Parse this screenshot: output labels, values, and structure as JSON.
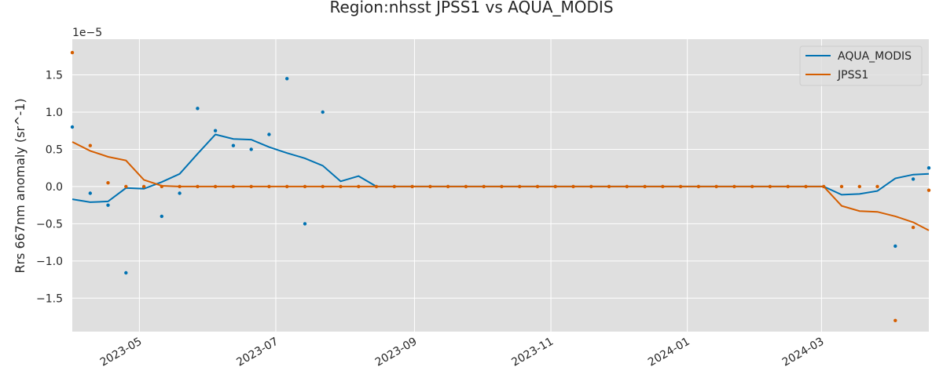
{
  "chart_data": {
    "type": "line",
    "title": "Region:nhsst JPSS1 vs AQUA_MODIS",
    "ylabel": "Rrs 667nm anomaly (sr^-1)",
    "y_offset_label": "1e−5",
    "y_scale_note": "values in units of 1e-5",
    "xlim": [
      "2023-04-01",
      "2024-04-18"
    ],
    "ylim": [
      -1.95,
      1.98
    ],
    "x_tick_labels": [
      "2023-05",
      "2023-07",
      "2023-09",
      "2023-11",
      "2024-01",
      "2024-03"
    ],
    "x_ticks": [
      "2023-05-01",
      "2023-07-01",
      "2023-09-01",
      "2023-11-01",
      "2024-01-01",
      "2024-03-01"
    ],
    "y_ticks": [
      -1.5,
      -1.0,
      -0.5,
      0.0,
      0.5,
      1.0,
      1.5
    ],
    "y_tick_labels": [
      "−1.5",
      "−1.0",
      "−0.5",
      "0.0",
      "0.5",
      "1.0",
      "1.5"
    ],
    "grid": true,
    "legend_position": "top-right",
    "colors": {
      "AQUA_MODIS": "#0072b2",
      "JPSS1": "#d55e00",
      "plot_bg": "#dfdfdf",
      "grid": "#ffffff"
    },
    "series": [
      {
        "name": "AQUA_MODIS",
        "kind": "line",
        "x": [
          "2023-04-01",
          "2023-04-09",
          "2023-04-17",
          "2023-04-25",
          "2023-05-03",
          "2023-05-11",
          "2023-05-19",
          "2023-05-27",
          "2023-06-04",
          "2023-06-12",
          "2023-06-20",
          "2023-06-28",
          "2023-07-06",
          "2023-07-14",
          "2023-07-22",
          "2023-07-30",
          "2023-08-07",
          "2023-08-15",
          "2023-08-23",
          "2023-08-31",
          "2023-09-08",
          "2023-09-16",
          "2023-09-24",
          "2023-10-02",
          "2023-10-10",
          "2023-10-18",
          "2023-10-26",
          "2023-11-03",
          "2023-11-11",
          "2023-11-19",
          "2023-11-27",
          "2023-12-05",
          "2023-12-13",
          "2023-12-21",
          "2023-12-29",
          "2024-01-06",
          "2024-01-14",
          "2024-01-22",
          "2024-01-30",
          "2024-02-07",
          "2024-02-15",
          "2024-02-23",
          "2024-03-02",
          "2024-03-10",
          "2024-03-18",
          "2024-03-26",
          "2024-04-03",
          "2024-04-11",
          "2024-04-18"
        ],
        "values": [
          -0.17,
          -0.21,
          -0.2,
          -0.02,
          -0.03,
          0.06,
          0.17,
          0.44,
          0.7,
          0.64,
          0.63,
          0.53,
          0.45,
          0.38,
          0.28,
          0.07,
          0.14,
          0.0,
          0.0,
          0.0,
          0.0,
          0.0,
          0.0,
          0.0,
          0.0,
          0.0,
          0.0,
          0.0,
          0.0,
          0.0,
          0.0,
          0.0,
          0.0,
          0.0,
          0.0,
          0.0,
          0.0,
          0.0,
          0.0,
          0.0,
          0.0,
          0.0,
          0.0,
          -0.11,
          -0.1,
          -0.06,
          0.11,
          0.16,
          0.17
        ]
      },
      {
        "name": "JPSS1",
        "kind": "line",
        "x": [
          "2023-04-01",
          "2023-04-09",
          "2023-04-17",
          "2023-04-25",
          "2023-05-03",
          "2023-05-11",
          "2023-05-19",
          "2023-05-27",
          "2023-06-04",
          "2023-06-12",
          "2023-06-20",
          "2023-06-28",
          "2023-07-06",
          "2023-07-14",
          "2023-07-22",
          "2023-07-30",
          "2023-08-07",
          "2023-08-15",
          "2023-08-23",
          "2023-08-31",
          "2023-09-08",
          "2023-09-16",
          "2023-09-24",
          "2023-10-02",
          "2023-10-10",
          "2023-10-18",
          "2023-10-26",
          "2023-11-03",
          "2023-11-11",
          "2023-11-19",
          "2023-11-27",
          "2023-12-05",
          "2023-12-13",
          "2023-12-21",
          "2023-12-29",
          "2024-01-06",
          "2024-01-14",
          "2024-01-22",
          "2024-01-30",
          "2024-02-07",
          "2024-02-15",
          "2024-02-23",
          "2024-03-02",
          "2024-03-10",
          "2024-03-18",
          "2024-03-26",
          "2024-04-03",
          "2024-04-11",
          "2024-04-18"
        ],
        "values": [
          0.6,
          0.48,
          0.4,
          0.35,
          0.09,
          0.01,
          0.0,
          0.0,
          0.0,
          0.0,
          0.0,
          0.0,
          0.0,
          0.0,
          0.0,
          0.0,
          0.0,
          0.0,
          0.0,
          0.0,
          0.0,
          0.0,
          0.0,
          0.0,
          0.0,
          0.0,
          0.0,
          0.0,
          0.0,
          0.0,
          0.0,
          0.0,
          0.0,
          0.0,
          0.0,
          0.0,
          0.0,
          0.0,
          0.0,
          0.0,
          0.0,
          0.0,
          0.0,
          -0.26,
          -0.33,
          -0.34,
          -0.4,
          -0.48,
          -0.59
        ]
      },
      {
        "name": "AQUA_MODIS points",
        "kind": "scatter",
        "color_key": "AQUA_MODIS",
        "x": [
          "2023-04-01",
          "2023-04-09",
          "2023-04-17",
          "2023-04-25",
          "2023-05-03",
          "2023-05-11",
          "2023-05-19",
          "2023-05-27",
          "2023-06-04",
          "2023-06-12",
          "2023-06-20",
          "2023-06-28",
          "2023-07-06",
          "2023-07-14",
          "2023-07-22",
          "2024-04-03",
          "2024-04-11",
          "2024-04-18"
        ],
        "values": [
          0.8,
          -0.09,
          -0.25,
          -1.16,
          -0.01,
          -0.4,
          -0.09,
          1.05,
          0.75,
          0.55,
          0.5,
          0.7,
          1.45,
          -0.5,
          1.0,
          -0.8,
          0.1,
          0.25
        ]
      },
      {
        "name": "JPSS1 points",
        "kind": "scatter",
        "color_key": "JPSS1",
        "x": [
          "2023-04-01",
          "2023-04-09",
          "2023-04-17",
          "2023-04-25",
          "2023-05-03",
          "2023-05-11",
          "2023-05-19",
          "2023-05-27",
          "2023-06-04",
          "2023-06-12",
          "2023-06-20",
          "2023-06-28",
          "2023-07-06",
          "2023-07-14",
          "2023-07-22",
          "2023-07-30",
          "2023-08-07",
          "2023-08-15",
          "2023-08-23",
          "2023-08-31",
          "2023-09-08",
          "2023-09-16",
          "2023-09-24",
          "2023-10-02",
          "2023-10-10",
          "2023-10-18",
          "2023-10-26",
          "2023-11-03",
          "2023-11-11",
          "2023-11-19",
          "2023-11-27",
          "2023-12-05",
          "2023-12-13",
          "2023-12-21",
          "2023-12-29",
          "2024-01-06",
          "2024-01-14",
          "2024-01-22",
          "2024-01-30",
          "2024-02-07",
          "2024-02-15",
          "2024-02-23",
          "2024-03-02",
          "2024-03-10",
          "2024-03-18",
          "2024-03-26",
          "2024-04-03",
          "2024-04-11",
          "2024-04-18"
        ],
        "values": [
          1.8,
          0.55,
          0.05,
          0.0,
          0.0,
          0.0,
          0.0,
          0.0,
          0.0,
          0.0,
          0.0,
          0.0,
          0.0,
          0.0,
          0.0,
          0.0,
          0.0,
          0.0,
          0.0,
          0.0,
          0.0,
          0.0,
          0.0,
          0.0,
          0.0,
          0.0,
          0.0,
          0.0,
          0.0,
          0.0,
          0.0,
          0.0,
          0.0,
          0.0,
          0.0,
          0.0,
          0.0,
          0.0,
          0.0,
          0.0,
          0.0,
          0.0,
          0.0,
          0.0,
          0.0,
          0.0,
          -1.8,
          -0.55,
          -0.05
        ]
      }
    ]
  }
}
